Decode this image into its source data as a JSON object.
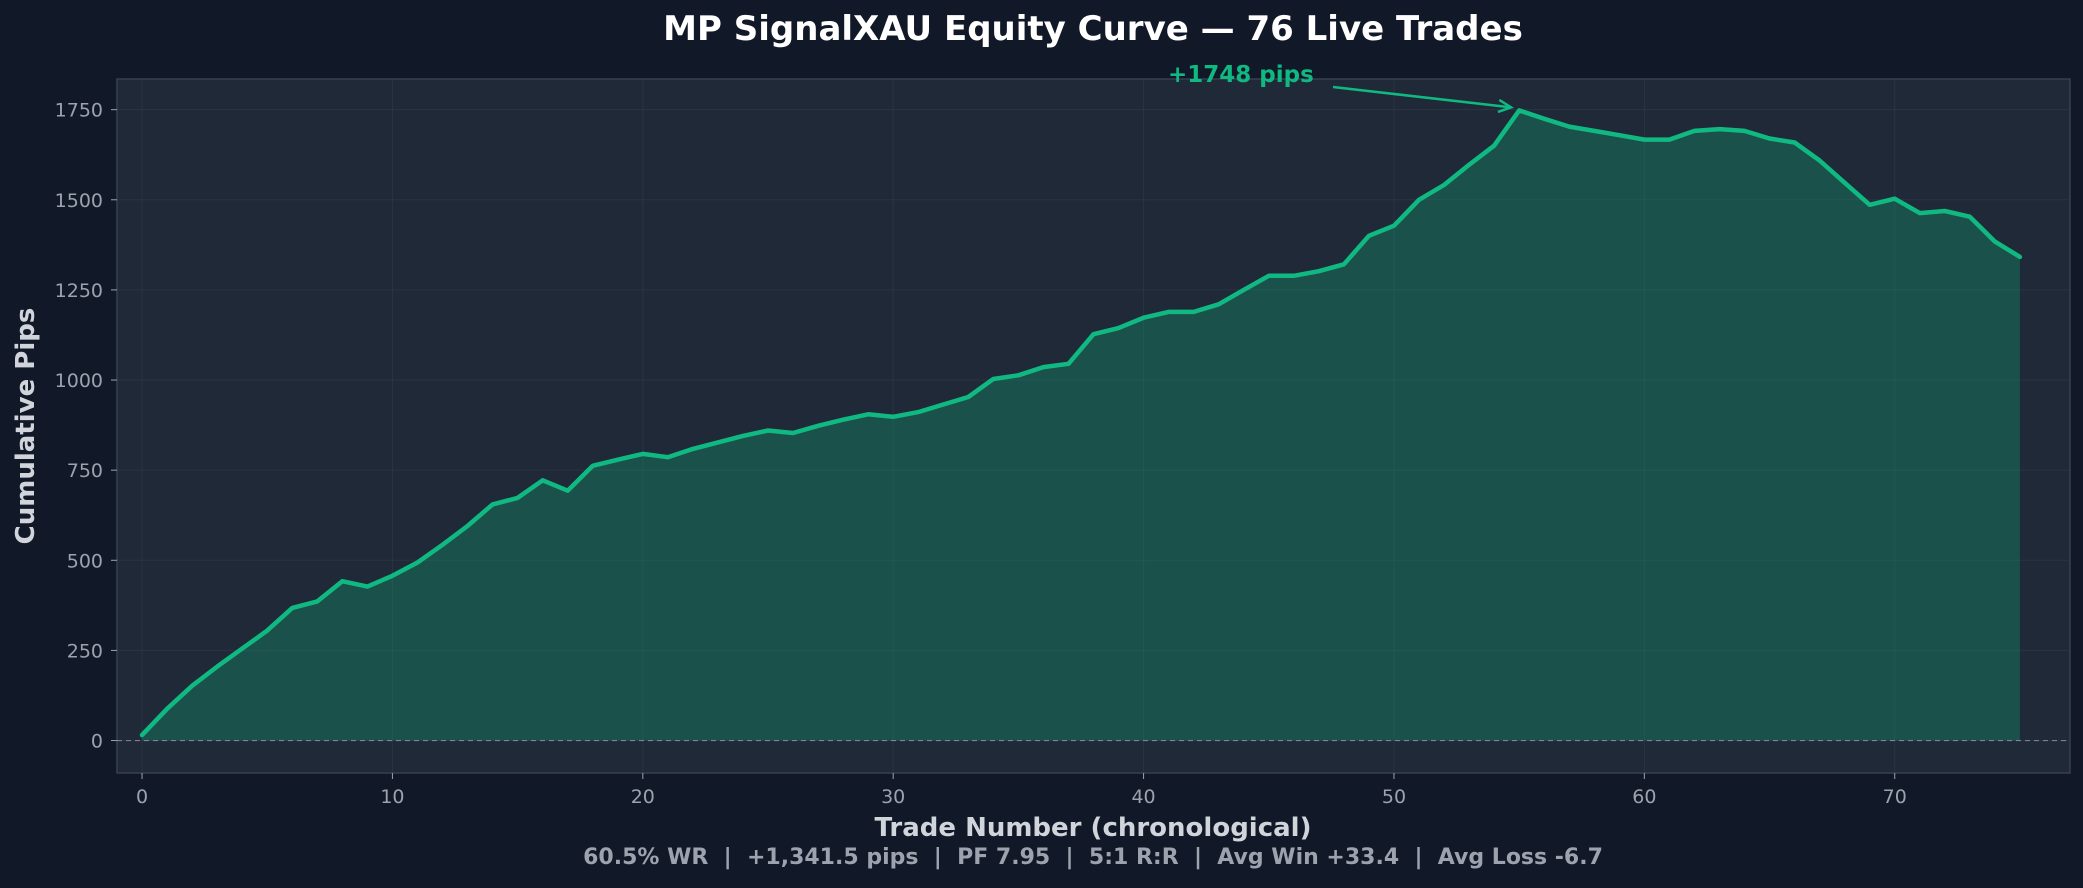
{
  "colors": {
    "background": "#111827",
    "plot_bg": "#1f2937",
    "line": "#10b981",
    "fill": "#10b981",
    "text": "#ffffff",
    "muted": "#9ca3af",
    "label": "#d1d5db",
    "grid": "#374151"
  },
  "chart_data": {
    "type": "area",
    "title": "MP SignalXAU Equity Curve — 76 Live Trades",
    "xlabel": "Trade Number (chronological)",
    "ylabel": "Cumulative Pips",
    "subtitle": "60.5% WR  |  +1,341.5 pips  |  PF 7.95  |  5:1 R:R  |  Avg Win +33.4  |  Avg Loss -6.7",
    "xlim": [
      -1,
      77
    ],
    "ylim": [
      -90,
      1835
    ],
    "xticks": [
      0,
      10,
      20,
      30,
      40,
      50,
      60,
      70
    ],
    "yticks": [
      0,
      250,
      500,
      750,
      1000,
      1250,
      1500,
      1750
    ],
    "grid": true,
    "zero_line": true,
    "annotation": {
      "text": "+1748 pips",
      "x": 55,
      "y": 1748
    },
    "series": [
      {
        "x": [
          0,
          1,
          2,
          3,
          4,
          5,
          6,
          7,
          8,
          9,
          10,
          11,
          12,
          13,
          14,
          15,
          16,
          17,
          18,
          19,
          20,
          21,
          22,
          23,
          24,
          25,
          26,
          27,
          28,
          29,
          30,
          31,
          32,
          33,
          34,
          35,
          36,
          37,
          38,
          39,
          40,
          41,
          42,
          43,
          44,
          45,
          46,
          47,
          48,
          49,
          50,
          51,
          52,
          53,
          54,
          55,
          56,
          57,
          58,
          59,
          60,
          61,
          62,
          63,
          64,
          65,
          66,
          67,
          68,
          69,
          70,
          71,
          72,
          73,
          74,
          75
        ],
        "values": [
          15,
          88,
          152,
          205,
          255,
          305,
          368,
          386,
          442,
          427,
          457,
          494,
          543,
          595,
          655,
          673,
          722,
          693,
          762,
          779,
          795,
          786,
          809,
          827,
          845,
          860,
          853,
          873,
          890,
          905,
          898,
          911,
          932,
          953,
          1003,
          1013,
          1036,
          1045,
          1127,
          1144,
          1173,
          1189,
          1189,
          1210,
          1250,
          1289,
          1289,
          1302,
          1321,
          1400,
          1428,
          1500,
          1541,
          1597,
          1650,
          1748,
          1725,
          1703,
          1691,
          1679,
          1667,
          1667,
          1691,
          1696,
          1691,
          1670,
          1659,
          1609,
          1547,
          1486,
          1503,
          1463,
          1469,
          1453,
          1384,
          1341.5
        ]
      }
    ]
  }
}
